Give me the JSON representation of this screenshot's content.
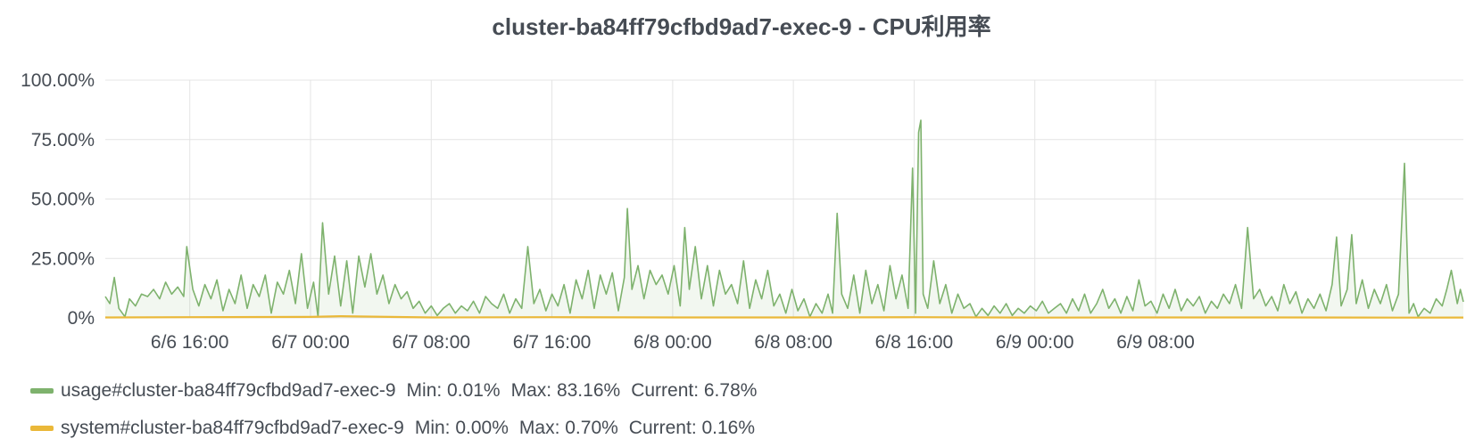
{
  "colors": {
    "usage": "#7eb26d",
    "system": "#eab839",
    "grid": "#e4e4e4"
  },
  "chart_data": {
    "type": "line",
    "title": "cluster-ba84ff79cfbd9ad7-exec-9 - CPU利用率",
    "ylim": [
      0,
      100
    ],
    "y_ticks": [
      "0%",
      "25.00%",
      "50.00%",
      "75.00%",
      "100.00%"
    ],
    "y_tick_values": [
      0,
      25,
      50,
      75,
      100
    ],
    "x_range_hours": [
      -5.6,
      84.4
    ],
    "x_ticks": [
      "6/6 16:00",
      "6/7 00:00",
      "6/7 08:00",
      "6/7 16:00",
      "6/8 00:00",
      "6/8 08:00",
      "6/8 16:00",
      "6/9 00:00",
      "6/9 08:00"
    ],
    "x_tick_hours": [
      0,
      8,
      16,
      24,
      32,
      40,
      48,
      56,
      64
    ],
    "grid": true,
    "legend_position": "bottom-left",
    "series": [
      {
        "key": "usage",
        "name": "usage#cluster-ba84ff79cfbd9ad7-exec-9",
        "min": "Min: 0.01%",
        "max": "Max: 83.16%",
        "current": "Current: 6.78%",
        "fill": true,
        "points": [
          [
            -5.6,
            9
          ],
          [
            -5.3,
            6
          ],
          [
            -5.0,
            17
          ],
          [
            -4.7,
            4
          ],
          [
            -4.3,
            0.5
          ],
          [
            -4.0,
            8
          ],
          [
            -3.6,
            5
          ],
          [
            -3.2,
            10
          ],
          [
            -2.8,
            9
          ],
          [
            -2.4,
            12
          ],
          [
            -2.0,
            8
          ],
          [
            -1.6,
            15
          ],
          [
            -1.2,
            10
          ],
          [
            -0.8,
            13
          ],
          [
            -0.4,
            9
          ],
          [
            -0.2,
            30
          ],
          [
            0.2,
            12
          ],
          [
            0.6,
            5
          ],
          [
            1.0,
            14
          ],
          [
            1.4,
            8
          ],
          [
            1.8,
            16
          ],
          [
            2.2,
            3
          ],
          [
            2.6,
            12
          ],
          [
            3.0,
            6
          ],
          [
            3.4,
            18
          ],
          [
            3.8,
            4
          ],
          [
            4.2,
            14
          ],
          [
            4.6,
            9
          ],
          [
            5.0,
            18
          ],
          [
            5.4,
            2
          ],
          [
            5.8,
            15
          ],
          [
            6.2,
            10
          ],
          [
            6.6,
            20
          ],
          [
            7.0,
            6
          ],
          [
            7.4,
            27
          ],
          [
            7.8,
            4
          ],
          [
            8.2,
            15
          ],
          [
            8.5,
            0.5
          ],
          [
            8.8,
            40
          ],
          [
            9.2,
            10
          ],
          [
            9.6,
            26
          ],
          [
            10.0,
            5
          ],
          [
            10.4,
            24
          ],
          [
            10.8,
            2
          ],
          [
            11.2,
            26
          ],
          [
            11.6,
            13
          ],
          [
            12.0,
            27
          ],
          [
            12.4,
            10
          ],
          [
            12.8,
            18
          ],
          [
            13.2,
            6
          ],
          [
            13.6,
            14
          ],
          [
            14.0,
            8
          ],
          [
            14.4,
            11
          ],
          [
            14.8,
            4
          ],
          [
            15.2,
            7
          ],
          [
            15.6,
            2
          ],
          [
            16.0,
            5
          ],
          [
            16.4,
            1
          ],
          [
            16.8,
            4
          ],
          [
            17.2,
            6
          ],
          [
            17.6,
            2
          ],
          [
            18.0,
            5
          ],
          [
            18.4,
            3
          ],
          [
            18.8,
            7
          ],
          [
            19.2,
            2
          ],
          [
            19.6,
            9
          ],
          [
            20.0,
            6
          ],
          [
            20.4,
            4
          ],
          [
            20.8,
            10
          ],
          [
            21.2,
            2
          ],
          [
            21.6,
            8
          ],
          [
            22.0,
            4
          ],
          [
            22.4,
            30
          ],
          [
            22.8,
            6
          ],
          [
            23.2,
            12
          ],
          [
            23.6,
            3
          ],
          [
            24.0,
            10
          ],
          [
            24.4,
            5
          ],
          [
            24.8,
            14
          ],
          [
            25.2,
            2
          ],
          [
            25.6,
            16
          ],
          [
            26.0,
            8
          ],
          [
            26.4,
            20
          ],
          [
            26.8,
            4
          ],
          [
            27.2,
            18
          ],
          [
            27.6,
            10
          ],
          [
            28.0,
            19
          ],
          [
            28.4,
            3
          ],
          [
            28.8,
            17
          ],
          [
            29.0,
            46
          ],
          [
            29.3,
            12
          ],
          [
            29.7,
            22
          ],
          [
            30.1,
            8
          ],
          [
            30.5,
            20
          ],
          [
            30.9,
            14
          ],
          [
            31.3,
            18
          ],
          [
            31.7,
            10
          ],
          [
            32.1,
            22
          ],
          [
            32.5,
            5
          ],
          [
            32.8,
            38
          ],
          [
            33.1,
            12
          ],
          [
            33.5,
            30
          ],
          [
            33.9,
            8
          ],
          [
            34.3,
            22
          ],
          [
            34.7,
            5
          ],
          [
            35.1,
            20
          ],
          [
            35.5,
            10
          ],
          [
            35.9,
            14
          ],
          [
            36.3,
            6
          ],
          [
            36.7,
            24
          ],
          [
            37.1,
            4
          ],
          [
            37.5,
            16
          ],
          [
            37.9,
            8
          ],
          [
            38.3,
            20
          ],
          [
            38.7,
            5
          ],
          [
            39.1,
            10
          ],
          [
            39.5,
            2
          ],
          [
            39.9,
            12
          ],
          [
            40.3,
            3
          ],
          [
            40.7,
            8
          ],
          [
            41.1,
            0.5
          ],
          [
            41.5,
            6
          ],
          [
            41.9,
            2
          ],
          [
            42.3,
            10
          ],
          [
            42.6,
            2
          ],
          [
            42.9,
            44
          ],
          [
            43.2,
            10
          ],
          [
            43.6,
            4
          ],
          [
            44.0,
            18
          ],
          [
            44.4,
            2
          ],
          [
            44.8,
            20
          ],
          [
            45.2,
            6
          ],
          [
            45.6,
            14
          ],
          [
            46.0,
            3
          ],
          [
            46.4,
            22
          ],
          [
            46.8,
            8
          ],
          [
            47.2,
            18
          ],
          [
            47.6,
            4
          ],
          [
            47.9,
            63
          ],
          [
            48.1,
            2
          ],
          [
            48.3,
            78
          ],
          [
            48.45,
            83.16
          ],
          [
            48.6,
            10
          ],
          [
            48.9,
            4
          ],
          [
            49.3,
            24
          ],
          [
            49.7,
            6
          ],
          [
            50.1,
            14
          ],
          [
            50.5,
            2
          ],
          [
            50.9,
            10
          ],
          [
            51.3,
            4
          ],
          [
            51.7,
            6
          ],
          [
            52.1,
            0.5
          ],
          [
            52.5,
            4
          ],
          [
            52.9,
            1
          ],
          [
            53.3,
            5
          ],
          [
            53.7,
            2
          ],
          [
            54.1,
            6
          ],
          [
            54.5,
            1
          ],
          [
            54.9,
            4
          ],
          [
            55.3,
            2
          ],
          [
            55.7,
            5
          ],
          [
            56.1,
            3
          ],
          [
            56.5,
            7
          ],
          [
            56.9,
            2
          ],
          [
            57.3,
            4
          ],
          [
            57.7,
            6
          ],
          [
            58.1,
            2
          ],
          [
            58.5,
            8
          ],
          [
            58.9,
            3
          ],
          [
            59.3,
            10
          ],
          [
            59.7,
            2
          ],
          [
            60.1,
            6
          ],
          [
            60.5,
            12
          ],
          [
            60.9,
            4
          ],
          [
            61.3,
            8
          ],
          [
            61.7,
            2
          ],
          [
            62.1,
            9
          ],
          [
            62.5,
            3
          ],
          [
            62.9,
            16
          ],
          [
            63.3,
            5
          ],
          [
            63.7,
            7
          ],
          [
            64.1,
            2
          ],
          [
            64.5,
            10
          ],
          [
            64.9,
            4
          ],
          [
            65.3,
            12
          ],
          [
            65.7,
            3
          ],
          [
            66.1,
            8
          ],
          [
            66.5,
            5
          ],
          [
            66.9,
            9
          ],
          [
            67.3,
            2
          ],
          [
            67.7,
            7
          ],
          [
            68.1,
            4
          ],
          [
            68.5,
            10
          ],
          [
            68.9,
            6
          ],
          [
            69.3,
            14
          ],
          [
            69.7,
            4
          ],
          [
            70.1,
            38
          ],
          [
            70.5,
            8
          ],
          [
            70.9,
            12
          ],
          [
            71.3,
            5
          ],
          [
            71.7,
            9
          ],
          [
            72.1,
            3
          ],
          [
            72.5,
            14
          ],
          [
            72.9,
            6
          ],
          [
            73.3,
            11
          ],
          [
            73.7,
            2
          ],
          [
            74.1,
            8
          ],
          [
            74.5,
            4
          ],
          [
            74.9,
            10
          ],
          [
            75.3,
            3
          ],
          [
            75.7,
            14
          ],
          [
            76.0,
            34
          ],
          [
            76.3,
            5
          ],
          [
            76.7,
            12
          ],
          [
            77.0,
            35
          ],
          [
            77.3,
            6
          ],
          [
            77.7,
            16
          ],
          [
            78.1,
            4
          ],
          [
            78.5,
            12
          ],
          [
            78.9,
            6
          ],
          [
            79.3,
            14
          ],
          [
            79.7,
            3
          ],
          [
            80.1,
            10
          ],
          [
            80.5,
            65
          ],
          [
            80.8,
            2
          ],
          [
            81.1,
            6
          ],
          [
            81.4,
            0.5
          ],
          [
            81.8,
            4
          ],
          [
            82.2,
            2
          ],
          [
            82.6,
            8
          ],
          [
            83.0,
            5
          ],
          [
            83.3,
            12
          ],
          [
            83.6,
            20
          ],
          [
            84.0,
            6
          ],
          [
            84.2,
            12
          ],
          [
            84.4,
            6.78
          ]
        ]
      },
      {
        "key": "system",
        "name": "system#cluster-ba84ff79cfbd9ad7-exec-9",
        "min": "Min: 0.00%",
        "max": "Max: 0.70%",
        "current": "Current: 0.16%",
        "fill": false,
        "points": [
          [
            -5.6,
            0.2
          ],
          [
            0,
            0.3
          ],
          [
            8,
            0.4
          ],
          [
            10,
            0.7
          ],
          [
            16,
            0.2
          ],
          [
            24,
            0.3
          ],
          [
            32,
            0.2
          ],
          [
            40,
            0.2
          ],
          [
            48,
            0.3
          ],
          [
            56,
            0.1
          ],
          [
            64,
            0.2
          ],
          [
            72,
            0.2
          ],
          [
            80,
            0.1
          ],
          [
            84.4,
            0.16
          ]
        ]
      }
    ]
  }
}
